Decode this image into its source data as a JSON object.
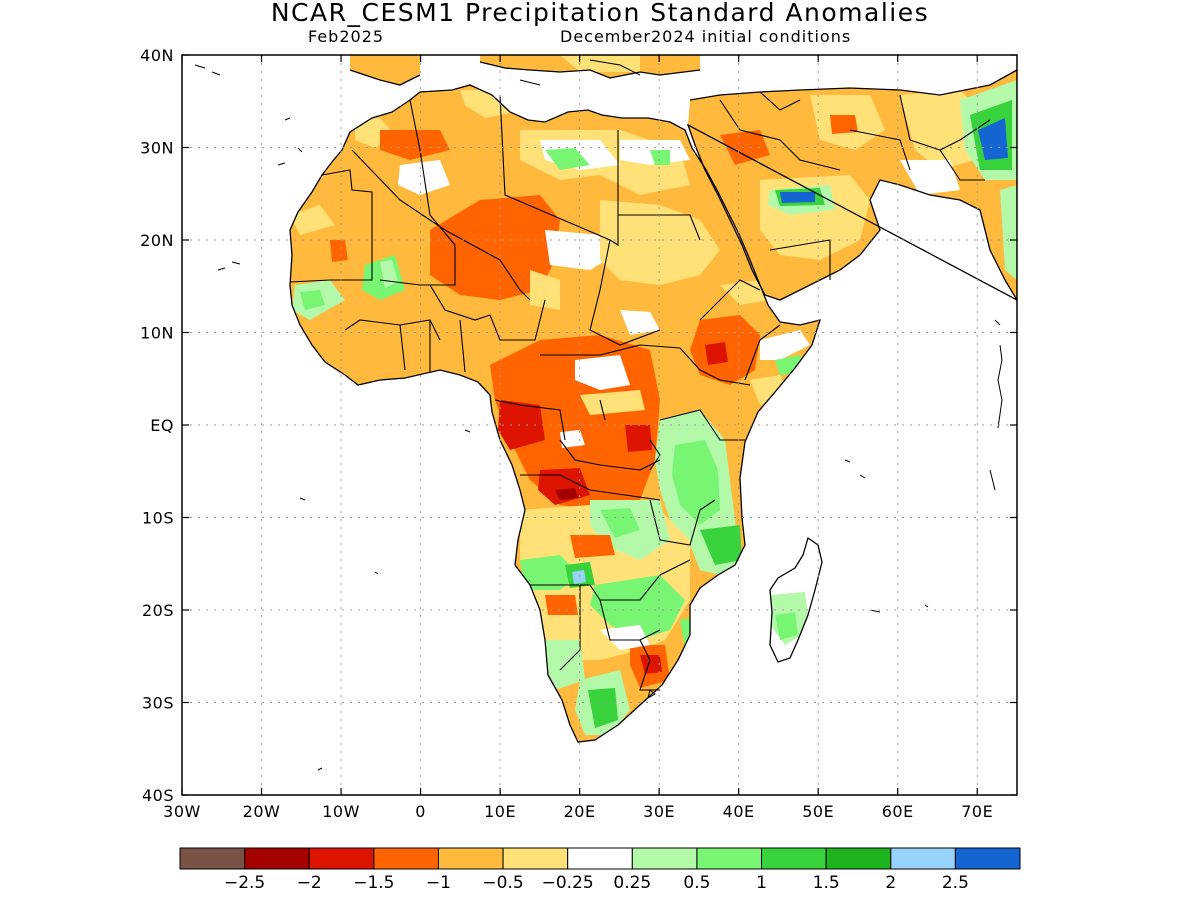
{
  "title": "NCAR_CESM1 Precipitation Standard Anomalies",
  "subtitle_left": "Feb2025",
  "subtitle_right": "December2024 initial conditions",
  "map": {
    "lon_range": [
      -30,
      75
    ],
    "lat_range": [
      -40,
      40
    ],
    "x_ticks": [
      {
        "lon": -30,
        "label": "30W"
      },
      {
        "lon": -20,
        "label": "20W"
      },
      {
        "lon": -10,
        "label": "10W"
      },
      {
        "lon": 0,
        "label": "0"
      },
      {
        "lon": 10,
        "label": "10E"
      },
      {
        "lon": 20,
        "label": "20E"
      },
      {
        "lon": 30,
        "label": "30E"
      },
      {
        "lon": 40,
        "label": "40E"
      },
      {
        "lon": 50,
        "label": "50E"
      },
      {
        "lon": 60,
        "label": "60E"
      },
      {
        "lon": 70,
        "label": "70E"
      }
    ],
    "y_ticks": [
      {
        "lat": 40,
        "label": "40N"
      },
      {
        "lat": 30,
        "label": "30N"
      },
      {
        "lat": 20,
        "label": "20N"
      },
      {
        "lat": 10,
        "label": "10N"
      },
      {
        "lat": 0,
        "label": "EQ"
      },
      {
        "lat": -10,
        "label": "10S"
      },
      {
        "lat": -20,
        "label": "20S"
      },
      {
        "lat": -30,
        "label": "30S"
      },
      {
        "lat": -40,
        "label": "40S"
      }
    ],
    "grid": "dotted"
  },
  "colorbar": {
    "colors": [
      "#7a5347",
      "#a50000",
      "#dd1500",
      "#ff6400",
      "#ffb93c",
      "#ffe178",
      "#ffffff",
      "#b4f8aa",
      "#78f573",
      "#37d23c",
      "#1eb41e",
      "#96d2fa",
      "#1464d2"
    ],
    "labels": [
      "-2.5",
      "-2",
      "-1.5",
      "-1",
      "-0.5",
      "-0.25",
      "0.25",
      "0.5",
      "1",
      "1.5",
      "2",
      "2.5"
    ]
  },
  "colors": {
    "light_orange": "#ffb93c",
    "orange": "#ff6400",
    "red": "#dd1500",
    "yellow": "#ffe178",
    "light_green": "#b4f8aa",
    "green": "#78f573",
    "mid_green": "#37d23c",
    "blue": "#1464d2",
    "light_blue": "#96d2fa"
  }
}
